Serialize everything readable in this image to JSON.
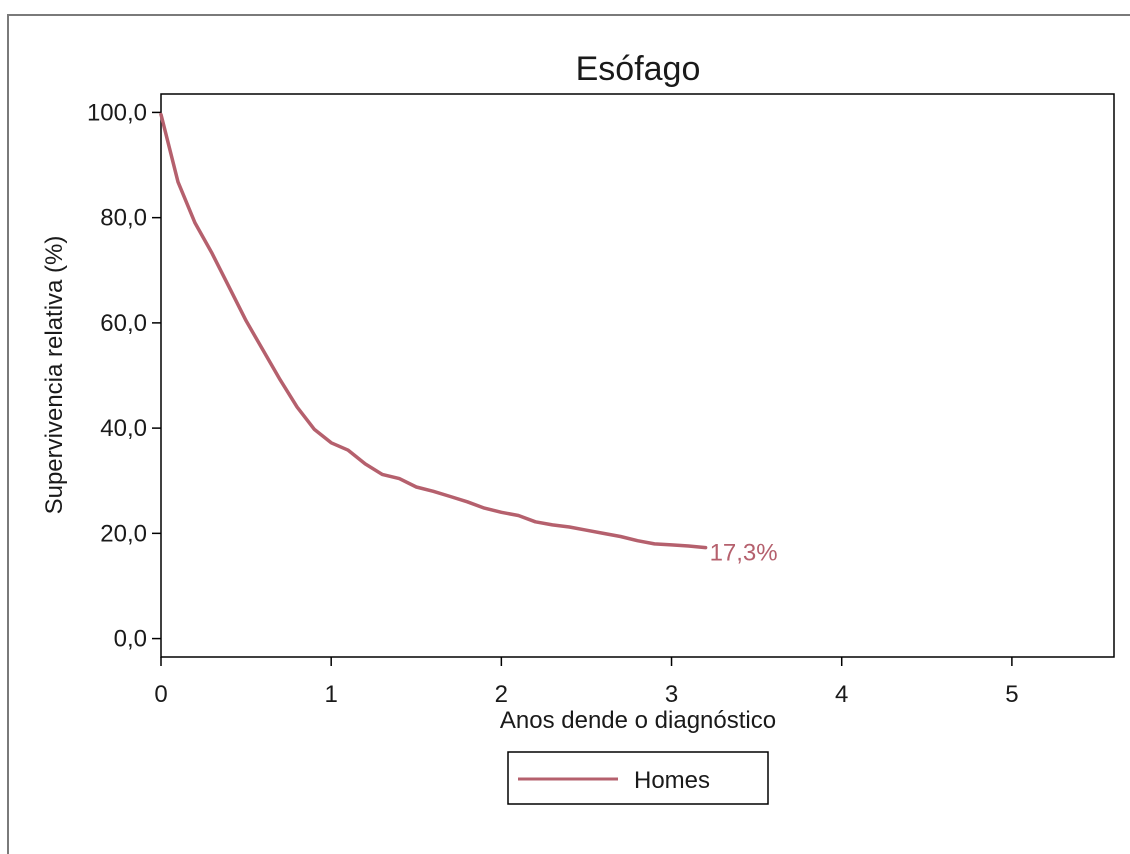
{
  "colors": {
    "series": "#b5606d",
    "axis": "#000000",
    "frame": "#7a7a7a"
  },
  "chart_data": {
    "type": "line",
    "title": "Esófago",
    "xlabel": "Anos dende o diagnóstico",
    "ylabel": "Supervivencia relativa (%)",
    "xlim": [
      0,
      5.6
    ],
    "ylim": [
      -3.5,
      103.5
    ],
    "xticks": [
      0,
      1,
      2,
      3,
      4,
      5
    ],
    "xtick_labels": [
      "0",
      "1",
      "2",
      "3",
      "4",
      "5"
    ],
    "yticks": [
      0,
      20,
      40,
      60,
      80,
      100
    ],
    "ytick_labels": [
      "0,0",
      "20,0",
      "40,0",
      "60,0",
      "80,0",
      "100,0"
    ],
    "grid": false,
    "legend_position": "bottom-center",
    "series": [
      {
        "name": "Homes",
        "x": [
          0,
          0.1,
          0.2,
          0.3,
          0.4,
          0.5,
          0.6,
          0.7,
          0.8,
          0.9,
          1.0,
          1.1,
          1.2,
          1.3,
          1.4,
          1.5,
          1.6,
          1.7,
          1.8,
          1.9,
          2.0,
          2.1,
          2.2,
          2.3,
          2.4,
          2.5,
          2.6,
          2.7,
          2.8,
          2.9,
          3.0,
          3.1,
          3.2
        ],
        "y": [
          99.6,
          86.8,
          79.0,
          73.2,
          66.8,
          60.4,
          54.8,
          49.2,
          44.0,
          39.8,
          37.2,
          35.8,
          33.2,
          31.2,
          30.4,
          28.8,
          28.0,
          27.0,
          26.0,
          24.8,
          24.0,
          23.4,
          22.2,
          21.6,
          21.2,
          20.6,
          20.0,
          19.4,
          18.6,
          18.0,
          17.8,
          17.6,
          17.3
        ]
      }
    ],
    "annotations": [
      {
        "text": "17,3%",
        "x": 3.2,
        "y": 17.3
      }
    ]
  }
}
